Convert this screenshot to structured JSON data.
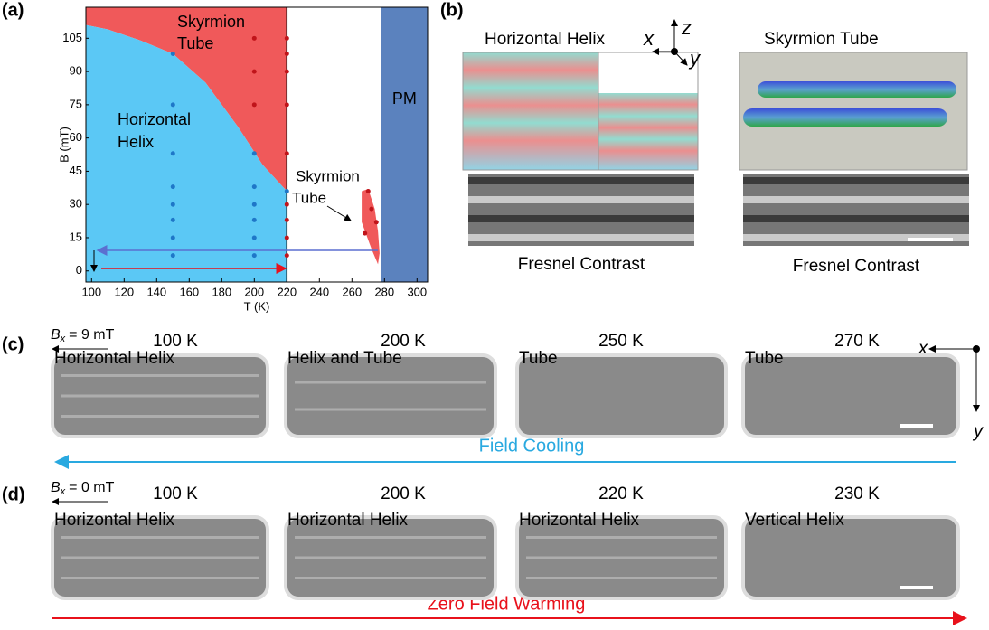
{
  "panels": {
    "a": "(a)",
    "b": "(b)",
    "c": "(c)",
    "d": "(d)"
  },
  "chart_data": {
    "type": "phase-diagram",
    "xlabel": "T (K)",
    "ylabel": "B (mT)",
    "xlim": [
      96.5,
      306.5
    ],
    "ylim": [
      -5,
      119
    ],
    "xticks": [
      100,
      120,
      140,
      160,
      180,
      200,
      220,
      240,
      260,
      280,
      300
    ],
    "yticks": [
      0,
      15,
      30,
      45,
      60,
      75,
      90,
      105
    ],
    "helix_boundary": {
      "x": [
        96.5,
        110,
        130,
        150,
        170,
        190,
        205,
        220
      ],
      "y": [
        111,
        109,
        104,
        98,
        85,
        65,
        48,
        36
      ],
      "color": "#5bc8f5"
    },
    "tube_color": "#f0595a",
    "tube_pocket": {
      "x": [
        266,
        270,
        274,
        276,
        277,
        276,
        272,
        266
      ],
      "y": [
        36,
        37,
        28,
        18,
        8,
        3,
        10,
        22
      ]
    },
    "helix_limit": 220,
    "pm_range": {
      "x": [
        278,
        306.5
      ],
      "color": "#5b82be"
    },
    "points": [
      {
        "color": "#1f77c8",
        "x": [
          150,
          150,
          150,
          150,
          150,
          150,
          150,
          150,
          200,
          200,
          200,
          200,
          200,
          200,
          220
        ],
        "y": [
          7,
          15,
          23,
          30,
          38,
          53,
          75,
          98,
          7,
          15,
          23,
          30,
          38,
          53,
          36
        ]
      },
      {
        "color": "#c0141a",
        "x": [
          200,
          200,
          200,
          220,
          220,
          220,
          220,
          220,
          220,
          220,
          220,
          220,
          270,
          275,
          268,
          272
        ],
        "y": [
          105,
          90,
          75,
          7,
          15,
          23,
          30,
          53,
          75,
          90,
          98,
          105,
          36,
          22,
          17,
          28
        ]
      }
    ],
    "region_labels": {
      "tube": [
        "Skyrmion",
        "Tube"
      ],
      "helix": [
        "Horizontal",
        "Helix"
      ],
      "pocket": [
        "Skyrmion",
        "Tube"
      ],
      "pm": "PM"
    }
  },
  "panel_b": {
    "left_title": "Horizontal Helix",
    "right_title": "Skyrmion Tube",
    "axes": {
      "x": "x",
      "y": "y",
      "z": "z"
    },
    "left_caption": "Fresnel Contrast",
    "right_caption": "Fresnel Contrast"
  },
  "panel_c": {
    "field": {
      "symbol": "B",
      "subscript": "x",
      "text": "= 9 mT"
    },
    "temperatures": [
      "100 K",
      "200 K",
      "250 K",
      "270 K"
    ],
    "states": [
      "Horizontal Helix",
      "Helix and Tube",
      "Tube",
      "Tube"
    ],
    "arrow_label": "Field Cooling",
    "axes": {
      "x": "x",
      "y": "y"
    }
  },
  "panel_d": {
    "field": {
      "symbol": "B",
      "subscript": "x",
      "text": "= 0 mT"
    },
    "temperatures": [
      "100 K",
      "200 K",
      "220 K",
      "230 K"
    ],
    "states": [
      "Horizontal Helix",
      "Horizontal Helix",
      "Horizontal Helix",
      "Vertical Helix"
    ],
    "arrow_label": "Zero Field Warming"
  }
}
